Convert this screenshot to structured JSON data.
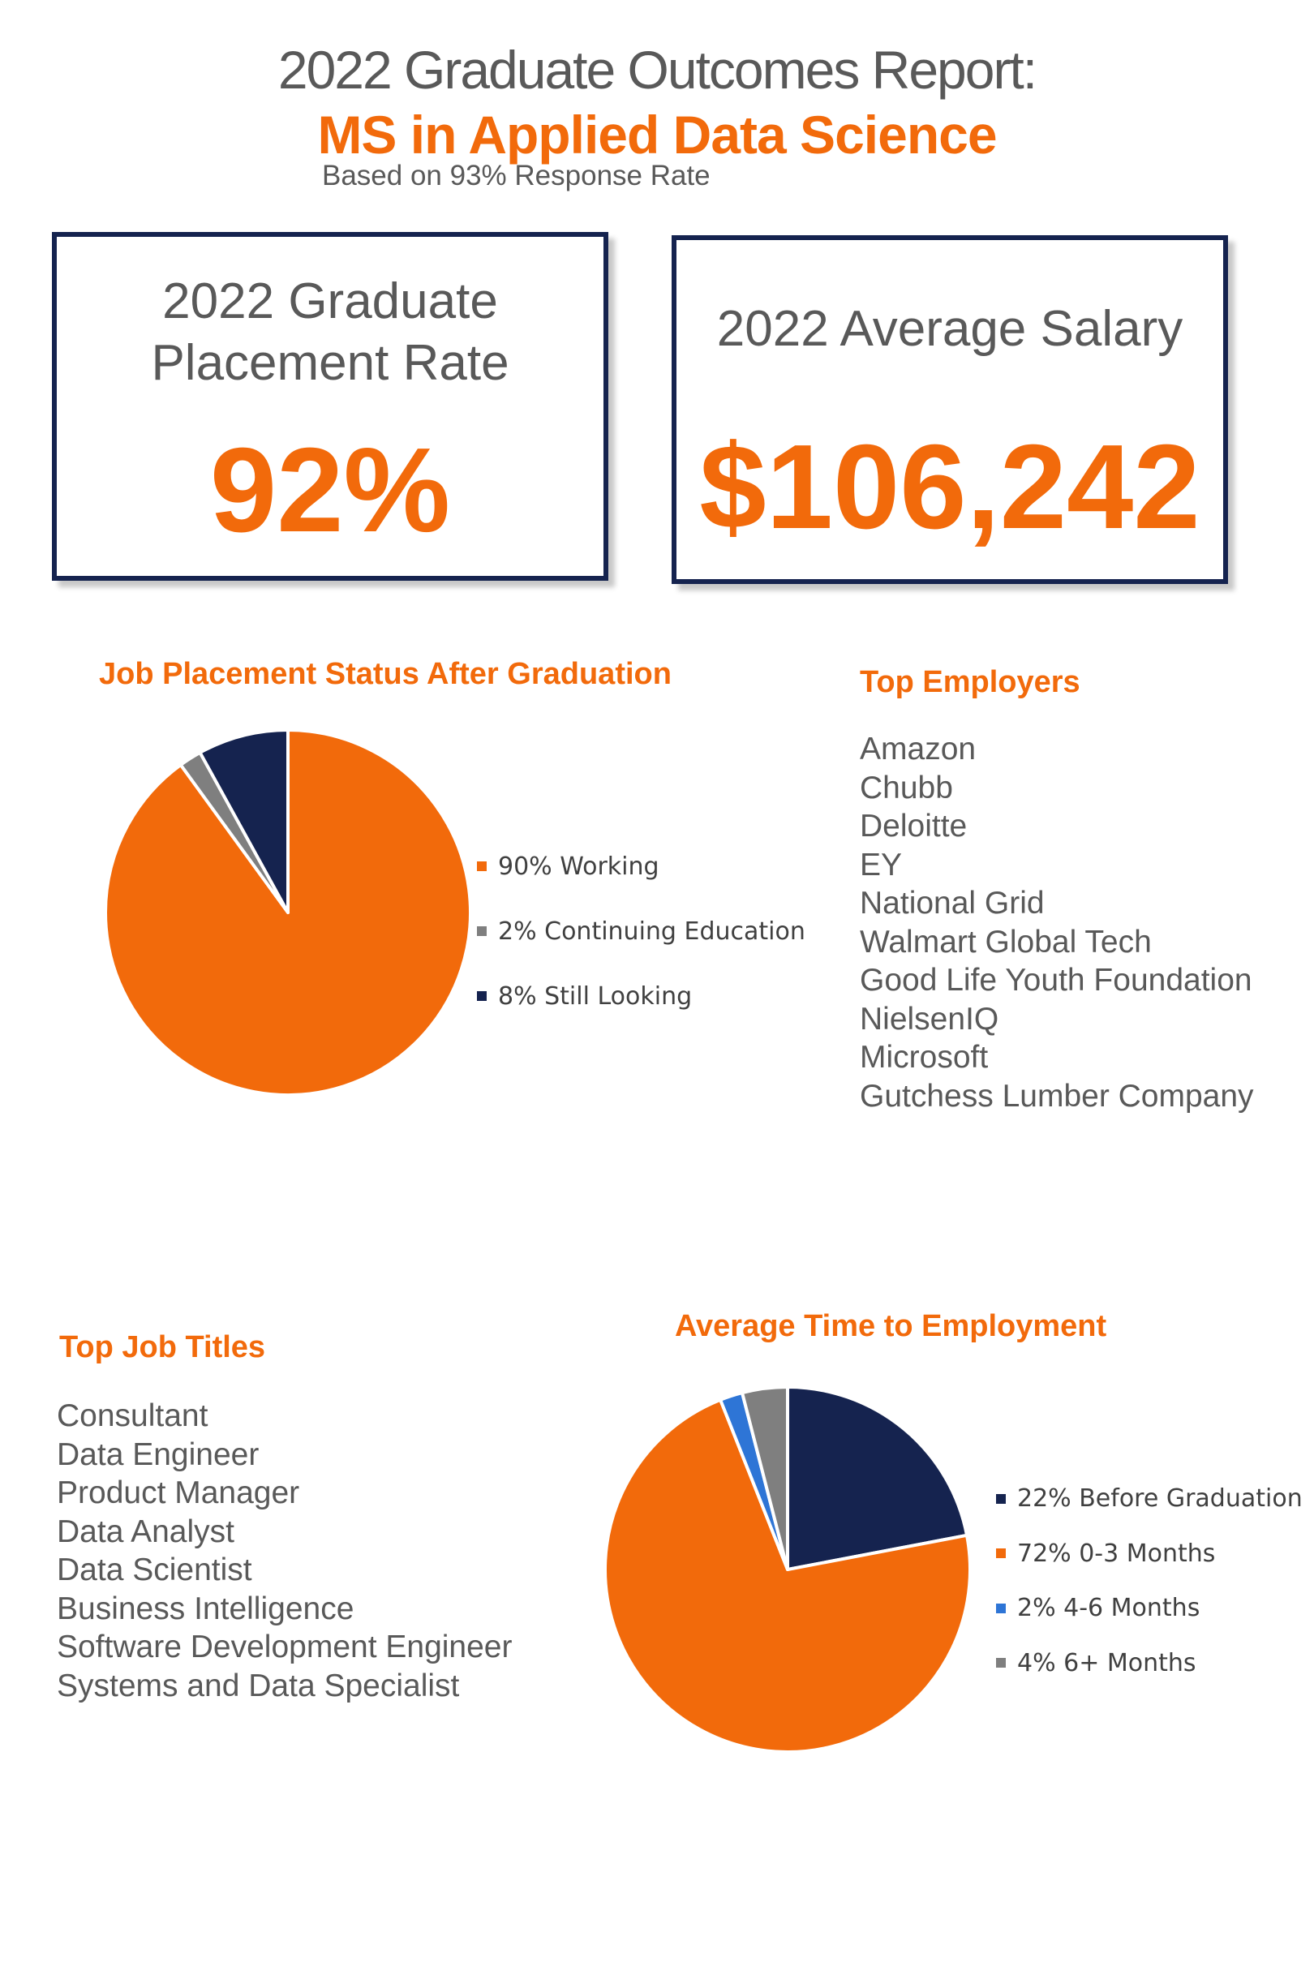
{
  "header": {
    "title": "2022 Graduate Outcomes Report:",
    "program": "MS in Applied Data Science",
    "response_note": "Based on 93% Response Rate"
  },
  "kpis": {
    "placement": {
      "label_line1": "2022 Graduate",
      "label_line2": "Placement Rate",
      "value": "92%"
    },
    "salary": {
      "label": "2022 Average Salary",
      "value": "$106,242"
    }
  },
  "top_employers": {
    "title": "Top Employers",
    "items": [
      "Amazon",
      "Chubb",
      "Deloitte",
      "EY",
      "National Grid",
      "Walmart Global Tech",
      "Good Life Youth  Foundation",
      "NielsenIQ",
      "Microsoft",
      "Gutchess  Lumber Company"
    ]
  },
  "top_job_titles": {
    "title": "Top Job Titles",
    "items": [
      "Consultant",
      "Data Engineer",
      "Product Manager",
      "Data Analyst",
      "Data Scientist",
      "Business Intelligence",
      "Software Development  Engineer",
      "Systems and Data Specialist"
    ]
  },
  "colors": {
    "orange": "#F26A0B",
    "navy": "#15234F",
    "gray": "#7F7F7F",
    "blue": "#2E75D6",
    "slate": "#595959"
  },
  "chart_data": [
    {
      "type": "pie",
      "title": "Job Placement Status After Graduation",
      "series": [
        {
          "label": "90% Working",
          "value": 90,
          "color": "#F26A0B"
        },
        {
          "label": "2% Continuing Education",
          "value": 2,
          "color": "#7F7F7F"
        },
        {
          "label": "8% Still Looking",
          "value": 8,
          "color": "#15234F"
        }
      ],
      "legend": "right"
    },
    {
      "type": "pie",
      "title": "Average Time to Employment",
      "series": [
        {
          "label": "22% Before Graduation",
          "value": 22,
          "color": "#15234F"
        },
        {
          "label": "72% 0-3 Months",
          "value": 72,
          "color": "#F26A0B"
        },
        {
          "label": "2% 4-6 Months",
          "value": 2,
          "color": "#2E75D6"
        },
        {
          "label": "4% 6+ Months",
          "value": 4,
          "color": "#7F7F7F"
        }
      ],
      "legend": "right"
    }
  ]
}
